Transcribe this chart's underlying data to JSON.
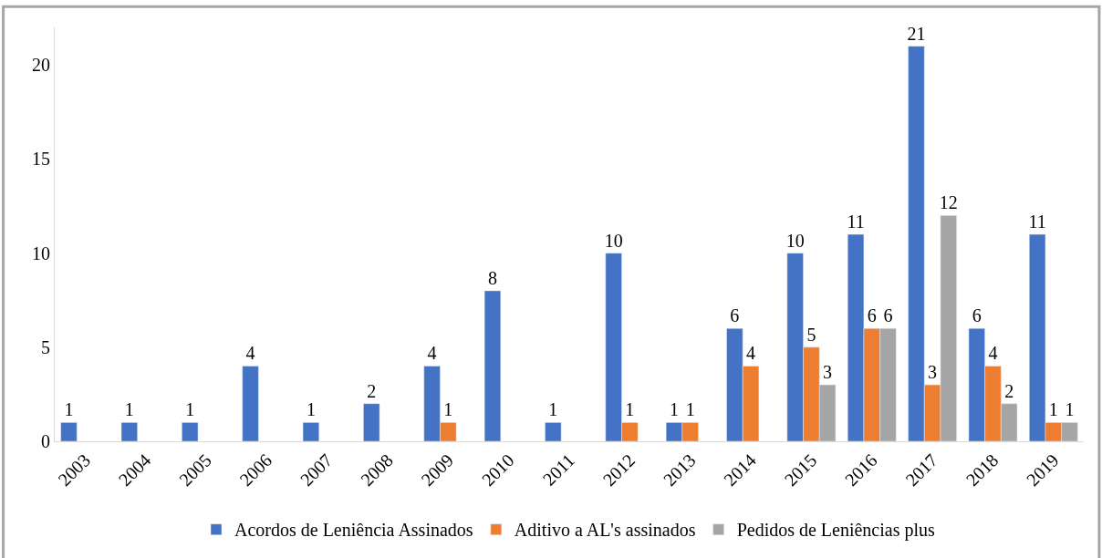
{
  "chart_data": {
    "type": "bar",
    "categories": [
      "2003",
      "2004",
      "2005",
      "2006",
      "2007",
      "2008",
      "2009",
      "2010",
      "2011",
      "2012",
      "2013",
      "2014",
      "2015",
      "2016",
      "2017",
      "2018",
      "2019"
    ],
    "series": [
      {
        "name": "Acordos de Leniência Assinados",
        "color": "#4472c4",
        "values": [
          1,
          1,
          1,
          4,
          1,
          2,
          4,
          8,
          1,
          10,
          1,
          6,
          10,
          11,
          21,
          6,
          11
        ]
      },
      {
        "name": "Aditivo a AL's assinados",
        "color": "#ed7d31",
        "values": [
          null,
          null,
          null,
          null,
          null,
          null,
          1,
          null,
          null,
          1,
          1,
          4,
          5,
          6,
          3,
          4,
          1
        ]
      },
      {
        "name": "Pedidos de Leniências plus",
        "color": "#a5a5a5",
        "values": [
          null,
          null,
          null,
          null,
          null,
          null,
          null,
          null,
          null,
          null,
          null,
          null,
          3,
          6,
          12,
          2,
          1
        ]
      }
    ],
    "ylim": [
      0,
      22
    ],
    "yticks": [
      0,
      5,
      10,
      15,
      20
    ],
    "data_labels": true,
    "legend": "bottom"
  }
}
